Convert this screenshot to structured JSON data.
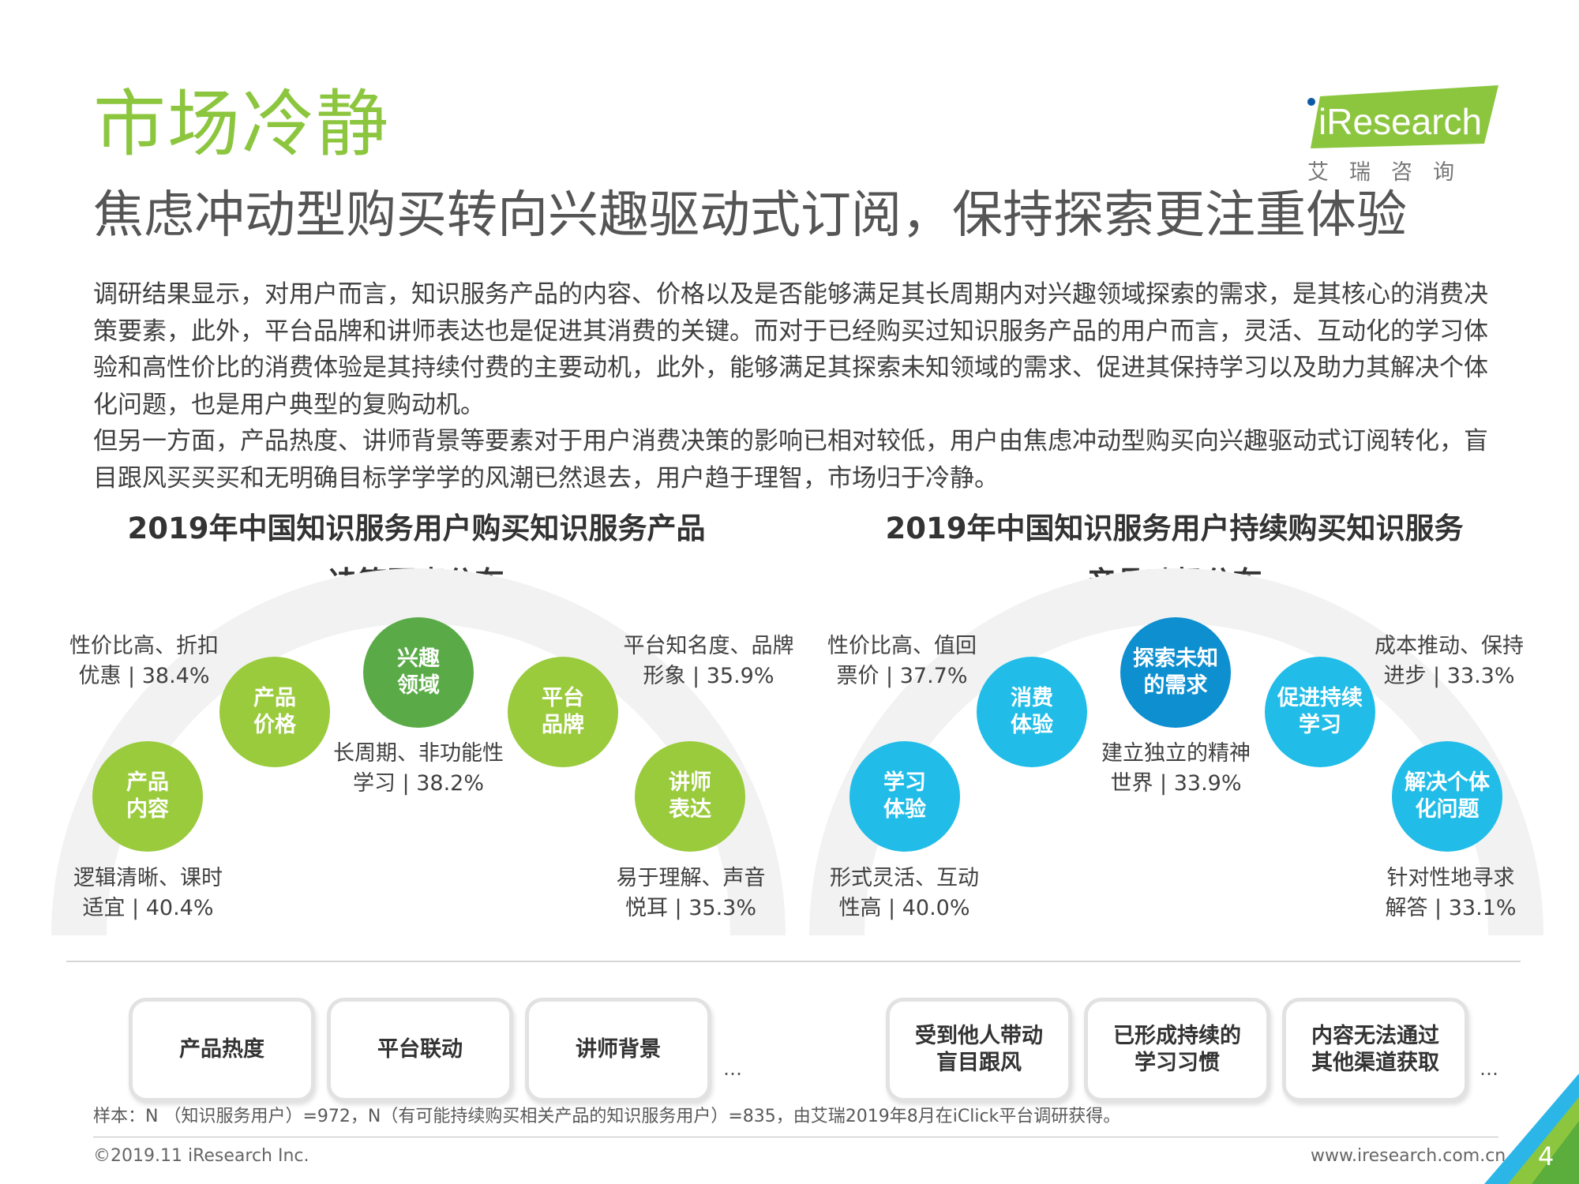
{
  "header": {
    "title": "市场冷静",
    "subtitle": "焦虑冲动型购买转向兴趣驱动式订阅，保持探索更注重体验",
    "logo_text": "iResearch",
    "logo_cn": "艾瑞咨询"
  },
  "body": {
    "paragraph1": "调研结果显示，对用户而言，知识服务产品的内容、价格以及是否能够满足其长周期内对兴趣领域探索的需求，是其核心的消费决策要素，此外，平台品牌和讲师表达也是促进其消费的关键。而对于已经购买过知识服务产品的用户而言，灵活、互动化的学习体验和高性价比的消费体验是其持续付费的主要动机，此外，能够满足其探索未知领域的需求、促进其保持学习以及助力其解决个体化问题，也是用户典型的复购动机。",
    "paragraph2": "但另一方面，产品热度、讲师背景等要素对于用户消费决策的影响已相对较低，用户由焦虑冲动型购买向兴趣驱动式订阅转化，盲目跟风买买买和无明确目标学学学的风潮已然退去，用户趋于理智，市场归于冷静。"
  },
  "left_chart": {
    "title_line1": "2019年中国知识服务用户购买知识服务产品",
    "title_line2": "决策因素分布",
    "colors": {
      "light": "#9acb3c",
      "dark": "#5aab47"
    },
    "items": [
      {
        "name": "产品\n内容",
        "label": "逻辑清晰、课时\n适宜 | 40.4%",
        "value": 40.4
      },
      {
        "name": "产品\n价格",
        "label": "性价比高、折扣\n优惠 | 38.4%",
        "value": 38.4
      },
      {
        "name": "兴趣\n领域",
        "label": "长周期、非功能性\n学习 | 38.2%",
        "value": 38.2
      },
      {
        "name": "平台\n品牌",
        "label": "平台知名度、品牌\n形象 | 35.9%",
        "value": 35.9
      },
      {
        "name": "讲师\n表达",
        "label": "易于理解、声音\n悦耳 | 35.3%",
        "value": 35.3
      }
    ],
    "other_factors": [
      "产品热度",
      "平台联动",
      "讲师背景"
    ],
    "ellipsis": "…"
  },
  "right_chart": {
    "title_line1": "2019年中国知识服务用户持续购买知识服务",
    "title_line2": "产品动机分布",
    "colors": {
      "light": "#21bde8",
      "dark": "#0e8fd0"
    },
    "items": [
      {
        "name": "学习\n体验",
        "label": "形式灵活、互动\n性高 | 40.0%",
        "value": 40.0
      },
      {
        "name": "消费\n体验",
        "label": "性价比高、值回\n票价 | 37.7%",
        "value": 37.7
      },
      {
        "name": "探索未知\n的需求",
        "label": "建立独立的精神\n世界 | 33.9%",
        "value": 33.9
      },
      {
        "name": "促进持续\n学习",
        "label": "成本推动、保持\n进步 | 33.3%",
        "value": 33.3
      },
      {
        "name": "解决个体\n化问题",
        "label": "针对性地寻求\n解答 | 33.1%",
        "value": 33.1
      }
    ],
    "other_factors": [
      "受到他人带动\n盲目跟风",
      "已形成持续的\n学习习惯",
      "内容无法通过\n其他渠道获取"
    ],
    "ellipsis": "…"
  },
  "footer": {
    "note": "样本：N （知识服务用户）=972，N（有可能持续购买相关产品的知识服务用户）=835，由艾瑞2019年8月在iClick平台调研获得。",
    "copyright": "©2019.11 iResearch Inc.",
    "website": "www.iresearch.com.cn",
    "page_number": "4"
  }
}
